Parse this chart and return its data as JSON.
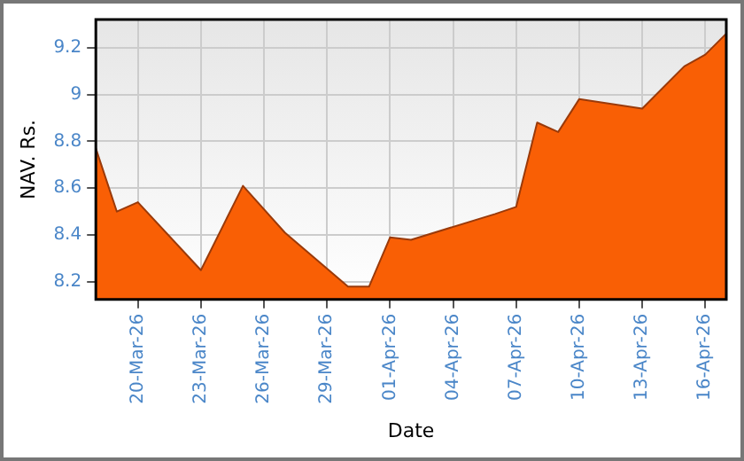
{
  "chart_data": {
    "type": "area",
    "xlabel": "Date",
    "ylabel": "NAV. Rs.",
    "x": [
      "--03-18",
      "--03-19",
      "--03-20",
      "--03-23",
      "--03-25",
      "--03-27",
      "--03-30",
      "--03-31",
      "--04-01",
      "--04-02",
      "--04-06",
      "--04-07",
      "--04-08",
      "--04-09",
      "--04-10",
      "--04-13",
      "--04-15",
      "--04-16",
      "--04-17"
    ],
    "series": [
      {
        "color": "#f95f05",
        "values": [
          8.77,
          8.5,
          8.54,
          8.25,
          8.61,
          8.41,
          8.18,
          8.18,
          8.39,
          8.38,
          8.49,
          8.52,
          8.88,
          8.84,
          8.98,
          8.94,
          9.12,
          9.17,
          9.26
        ]
      }
    ],
    "xlim": [
      "--03-18",
      "--04-17"
    ],
    "xticks": [
      {
        "value": "--03-20",
        "label": "20-Mar-26"
      },
      {
        "value": "--03-23",
        "label": "23-Mar-26"
      },
      {
        "value": "--03-26",
        "label": "26-Mar-26"
      },
      {
        "value": "--03-29",
        "label": "29-Mar-26"
      },
      {
        "value": "--04-01",
        "label": "01-Apr-26"
      },
      {
        "value": "--04-04",
        "label": "04-Apr-26"
      },
      {
        "value": "--04-07",
        "label": "07-Apr-26"
      },
      {
        "value": "--04-10",
        "label": "10-Apr-26"
      },
      {
        "value": "--04-13",
        "label": "13-Apr-26"
      },
      {
        "value": "--04-16",
        "label": "16-Apr-26"
      }
    ],
    "ylim": [
      8.125,
      9.32
    ],
    "yticks": [
      8.2,
      8.4,
      8.6,
      8.8,
      9,
      9.2
    ],
    "grid": true,
    "legend": false,
    "marker": "none"
  }
}
